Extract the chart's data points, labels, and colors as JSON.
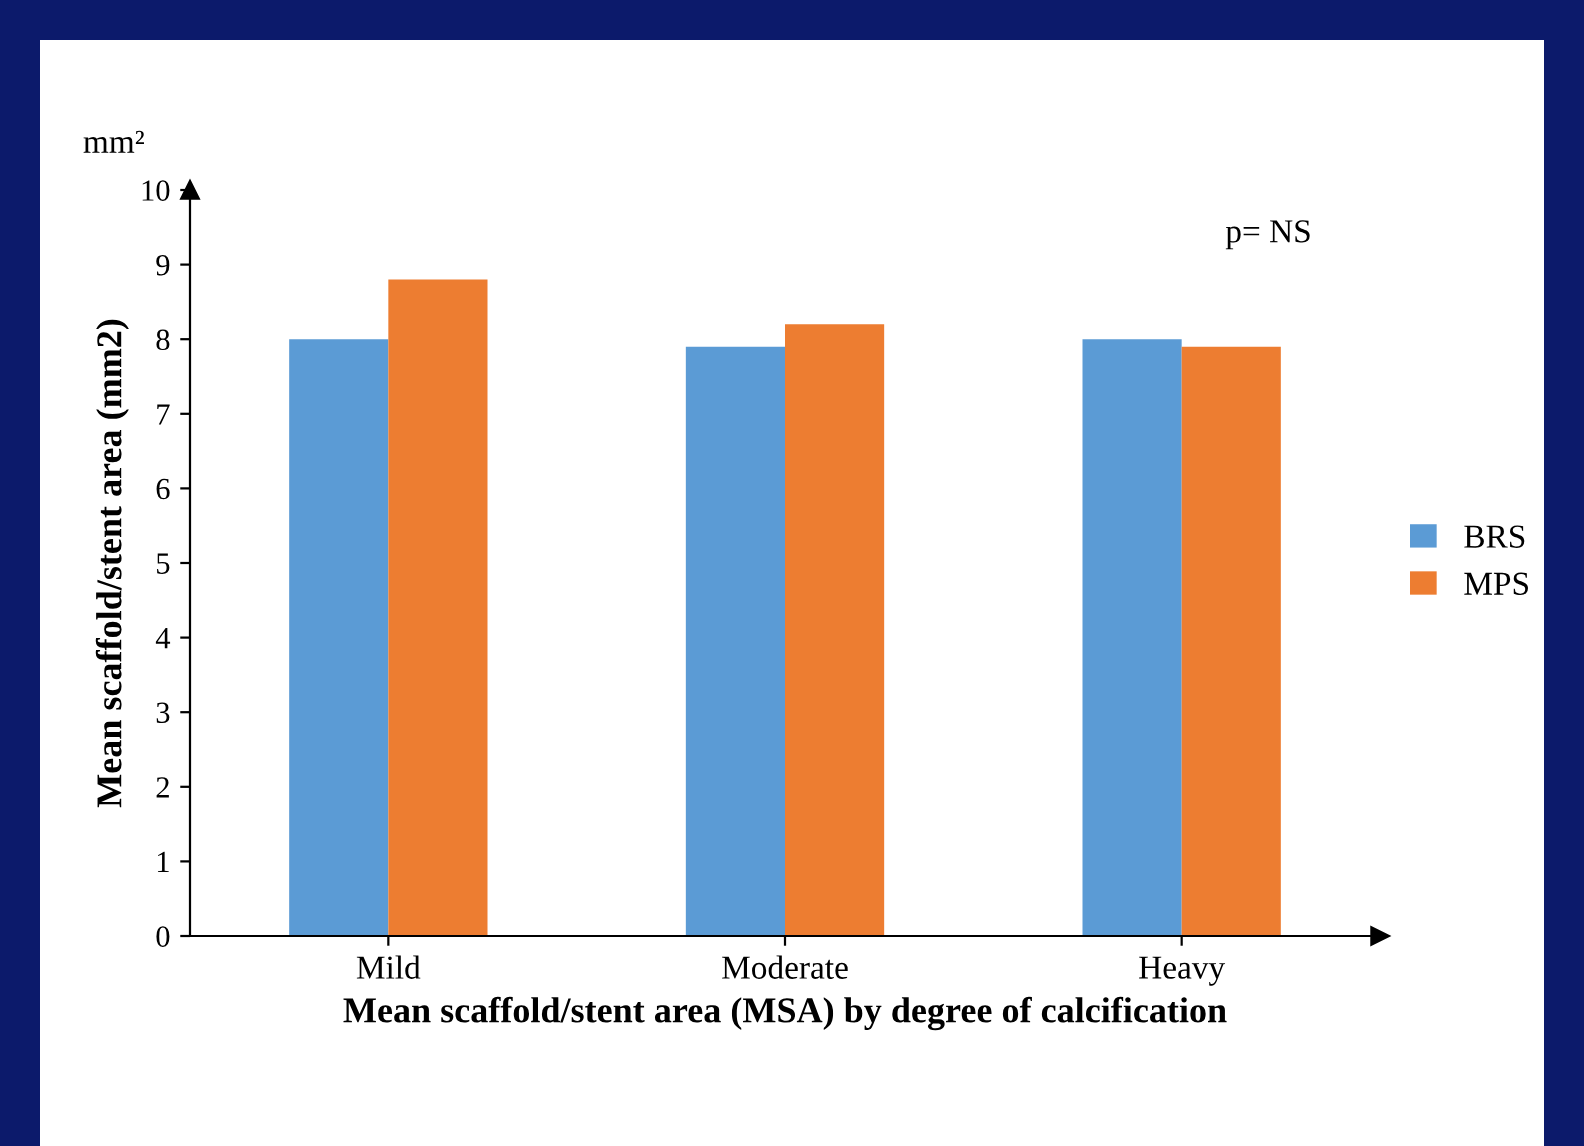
{
  "chart_data": {
    "type": "bar",
    "xlabel": "Mean scaffold/stent area (MSA) by degree of calcification",
    "ylabel": "Mean scaffold/stent area (mm2)",
    "annotations": [
      "mm²",
      "p= NS"
    ],
    "categories": [
      "Mild",
      "Moderate",
      "Heavy"
    ],
    "series": [
      {
        "name": "BRS",
        "color": "#5b9bd5",
        "values": [
          8.0,
          7.9,
          8.0
        ]
      },
      {
        "name": "MPS",
        "color": "#ed7d31",
        "values": [
          8.8,
          8.2,
          7.9
        ]
      }
    ],
    "ylim": [
      0,
      10
    ],
    "yticks": [
      0,
      1,
      2,
      3,
      4,
      5,
      6,
      7,
      8,
      9,
      10
    ],
    "grid": false,
    "legend": "right"
  }
}
